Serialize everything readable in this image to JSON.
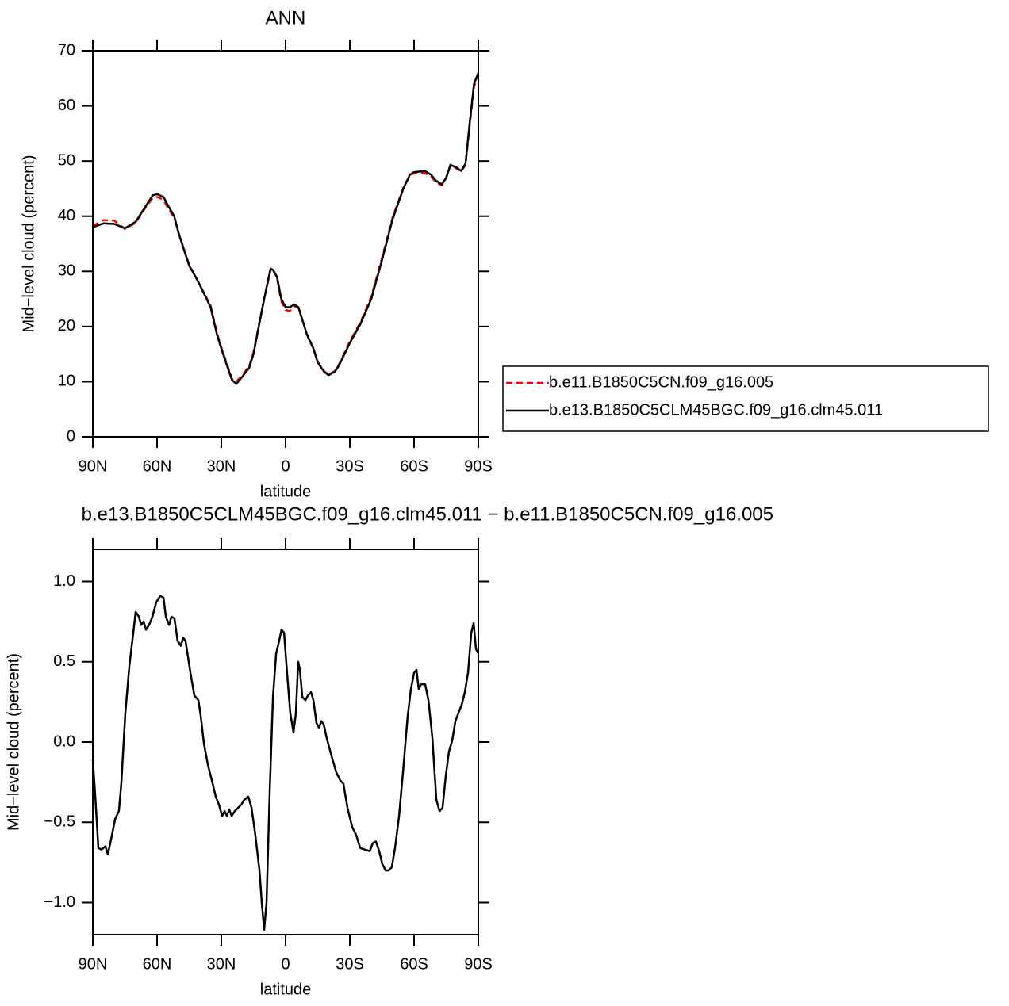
{
  "chart_data": [
    {
      "type": "line",
      "title": "ANN",
      "x_label": "latitude",
      "y_label": "Mid−level cloud (percent)",
      "x": [
        90,
        85,
        80,
        75,
        70,
        65,
        62,
        60,
        57,
        55,
        52,
        50,
        45,
        42,
        40,
        35,
        32,
        30,
        27,
        25,
        23,
        20,
        17,
        15,
        12,
        10,
        7,
        6,
        4,
        2,
        0,
        -2,
        -4,
        -6,
        -8,
        -10,
        -13,
        -15,
        -18,
        -20,
        -23,
        -25,
        -30,
        -35,
        -40,
        -45,
        -50,
        -55,
        -58,
        -60,
        -65,
        -68,
        -70,
        -73,
        -75,
        -77,
        -80,
        -82,
        -84,
        -86,
        -88,
        -90
      ],
      "xlim": [
        90,
        -90
      ],
      "xticks": [
        {
          "value": 90,
          "label": "90N"
        },
        {
          "value": 60,
          "label": "60N"
        },
        {
          "value": 30,
          "label": "30N"
        },
        0,
        {
          "value": -30,
          "label": "30S"
        },
        {
          "value": -60,
          "label": "60S"
        },
        {
          "value": -90,
          "label": "90S"
        }
      ],
      "ylim": [
        0,
        70
      ],
      "yticks": [
        0,
        10,
        20,
        30,
        40,
        50,
        60,
        70
      ],
      "legend": "right",
      "series": [
        {
          "name": "b.e11.B1850C5CN.f09_g16.005",
          "color": "#ff0000",
          "line_style": "dashed",
          "values": [
            38.2,
            39.3,
            39.2,
            37.7,
            38.8,
            41.8,
            43.3,
            43.5,
            43,
            41.5,
            39.8,
            37,
            31.2,
            29,
            27.5,
            23.8,
            18.8,
            16.2,
            12.8,
            10.5,
            10,
            11.3,
            12.8,
            15.3,
            21.2,
            25,
            30.3,
            30.5,
            28.8,
            24.6,
            23,
            22.8,
            23.7,
            23.4,
            21,
            18.6,
            16.1,
            13.6,
            11.9,
            11.3,
            11.9,
            13.2,
            17.3,
            20.8,
            25.4,
            32.4,
            39.8,
            45.2,
            47.3,
            47.8,
            47.8,
            47.2,
            46.2,
            45.6,
            46.9,
            49.3,
            48.6,
            48.1,
            49.3,
            56.5,
            63.5,
            65.5
          ]
        },
        {
          "name": "b.e13.B1850C5CLM45BGC.f09_g16.clm45.011",
          "color": "#000000",
          "line_style": "solid",
          "values": [
            38,
            38.7,
            38.6,
            37.8,
            39,
            42,
            43.8,
            44,
            43.5,
            42,
            40,
            37,
            31,
            29,
            27.5,
            23.5,
            18.5,
            16,
            12.5,
            10.3,
            9.6,
            11,
            12.5,
            15,
            21,
            25,
            30.5,
            30.3,
            29,
            25,
            23.5,
            23.5,
            24,
            23.5,
            21,
            18.5,
            16,
            13.5,
            11.8,
            11.2,
            11.8,
            13,
            17,
            20.5,
            25,
            32,
            39.5,
            45,
            47.5,
            48,
            48.2,
            47.5,
            46.5,
            45.8,
            47,
            49.3,
            48.8,
            48.2,
            49.5,
            57,
            64,
            66
          ]
        }
      ]
    },
    {
      "type": "line",
      "title": "b.e13.B1850C5CLM45BGC.f09_g16.clm45.011 − b.e11.B1850C5CN.f09_g16.005",
      "x_label": "latitude",
      "y_label": "Mid−level cloud (percent)",
      "x": [
        90,
        88.9,
        87.4,
        85.9,
        84.1,
        83.0,
        81.5,
        79.6,
        77.8,
        76.7,
        74.8,
        72.9,
        71.1,
        70.0,
        68.5,
        67.4,
        66.3,
        65.2,
        63.7,
        62.2,
        60.4,
        58.5,
        57.0,
        55.9,
        54.4,
        53.3,
        51.9,
        50.4,
        48.9,
        47.8,
        46.7,
        44.4,
        42.6,
        40.7,
        39.6,
        38.1,
        36.3,
        34.4,
        32.6,
        31.1,
        29.6,
        28.5,
        27.4,
        26.3,
        25.2,
        23.7,
        22.2,
        20.7,
        19.3,
        17.4,
        15.9,
        14.1,
        12.2,
        11.1,
        10.0,
        8.9,
        7.4,
        5.9,
        4.4,
        3.0,
        1.9,
        0.7,
        -0.7,
        -2.2,
        -3.7,
        -4.8,
        -5.9,
        -6.7,
        -7.8,
        -9.3,
        -10.4,
        -11.9,
        -13.0,
        -14.4,
        -15.6,
        -16.7,
        -17.8,
        -19.3,
        -21.5,
        -23.7,
        -25.6,
        -27.0,
        -28.9,
        -31.1,
        -33.0,
        -34.8,
        -37.0,
        -39.3,
        -40.7,
        -42.2,
        -43.7,
        -45.2,
        -46.7,
        -48.1,
        -49.6,
        -51.1,
        -53.0,
        -54.8,
        -57.0,
        -58.5,
        -60.0,
        -61.1,
        -62.2,
        -63.3,
        -65.2,
        -66.7,
        -68.5,
        -70.4,
        -71.9,
        -73.3,
        -74.8,
        -76.3,
        -77.8,
        -79.3,
        -80.7,
        -82.2,
        -83.7,
        -85.2,
        -86.7,
        -87.8,
        -88.9,
        -90
      ],
      "xlim": [
        90,
        -90
      ],
      "xticks": [
        {
          "value": 90,
          "label": "90N"
        },
        {
          "value": 60,
          "label": "60N"
        },
        {
          "value": 30,
          "label": "30N"
        },
        0,
        {
          "value": -30,
          "label": "30S"
        },
        {
          "value": -60,
          "label": "60S"
        },
        {
          "value": -90,
          "label": "90S"
        }
      ],
      "ylim": [
        -1.2,
        1.2
      ],
      "yticks": [
        {
          "value": -1,
          "label": "−1.0"
        },
        {
          "value": -0.5,
          "label": "−0.5"
        },
        {
          "value": 0,
          "label": "0.0"
        },
        0.5,
        {
          "value": 1,
          "label": "1.0"
        }
      ],
      "series": [
        {
          "color": "#000000",
          "line_style": "solid",
          "values": [
            -0.11,
            -0.33,
            -0.66,
            -0.67,
            -0.65,
            -0.7,
            -0.61,
            -0.48,
            -0.43,
            -0.26,
            0.18,
            0.48,
            0.68,
            0.81,
            0.78,
            0.73,
            0.75,
            0.7,
            0.73,
            0.78,
            0.87,
            0.91,
            0.9,
            0.78,
            0.73,
            0.78,
            0.77,
            0.63,
            0.6,
            0.65,
            0.63,
            0.43,
            0.29,
            0.26,
            0.16,
            -0.01,
            -0.14,
            -0.24,
            -0.34,
            -0.39,
            -0.46,
            -0.43,
            -0.46,
            -0.42,
            -0.46,
            -0.43,
            -0.41,
            -0.39,
            -0.36,
            -0.34,
            -0.41,
            -0.58,
            -0.8,
            -1.0,
            -1.17,
            -1.0,
            -0.31,
            0.28,
            0.55,
            0.63,
            0.7,
            0.68,
            0.43,
            0.18,
            0.06,
            0.18,
            0.5,
            0.45,
            0.28,
            0.26,
            0.29,
            0.31,
            0.26,
            0.12,
            0.09,
            0.13,
            0.11,
            0.02,
            -0.09,
            -0.19,
            -0.24,
            -0.26,
            -0.41,
            -0.53,
            -0.58,
            -0.66,
            -0.67,
            -0.68,
            -0.63,
            -0.62,
            -0.68,
            -0.76,
            -0.8,
            -0.8,
            -0.78,
            -0.66,
            -0.46,
            -0.19,
            0.16,
            0.33,
            0.43,
            0.45,
            0.33,
            0.36,
            0.36,
            0.26,
            0.03,
            -0.36,
            -0.43,
            -0.41,
            -0.21,
            -0.06,
            0.01,
            0.13,
            0.18,
            0.23,
            0.31,
            0.43,
            0.68,
            0.74,
            0.58,
            0.55
          ]
        }
      ]
    }
  ]
}
